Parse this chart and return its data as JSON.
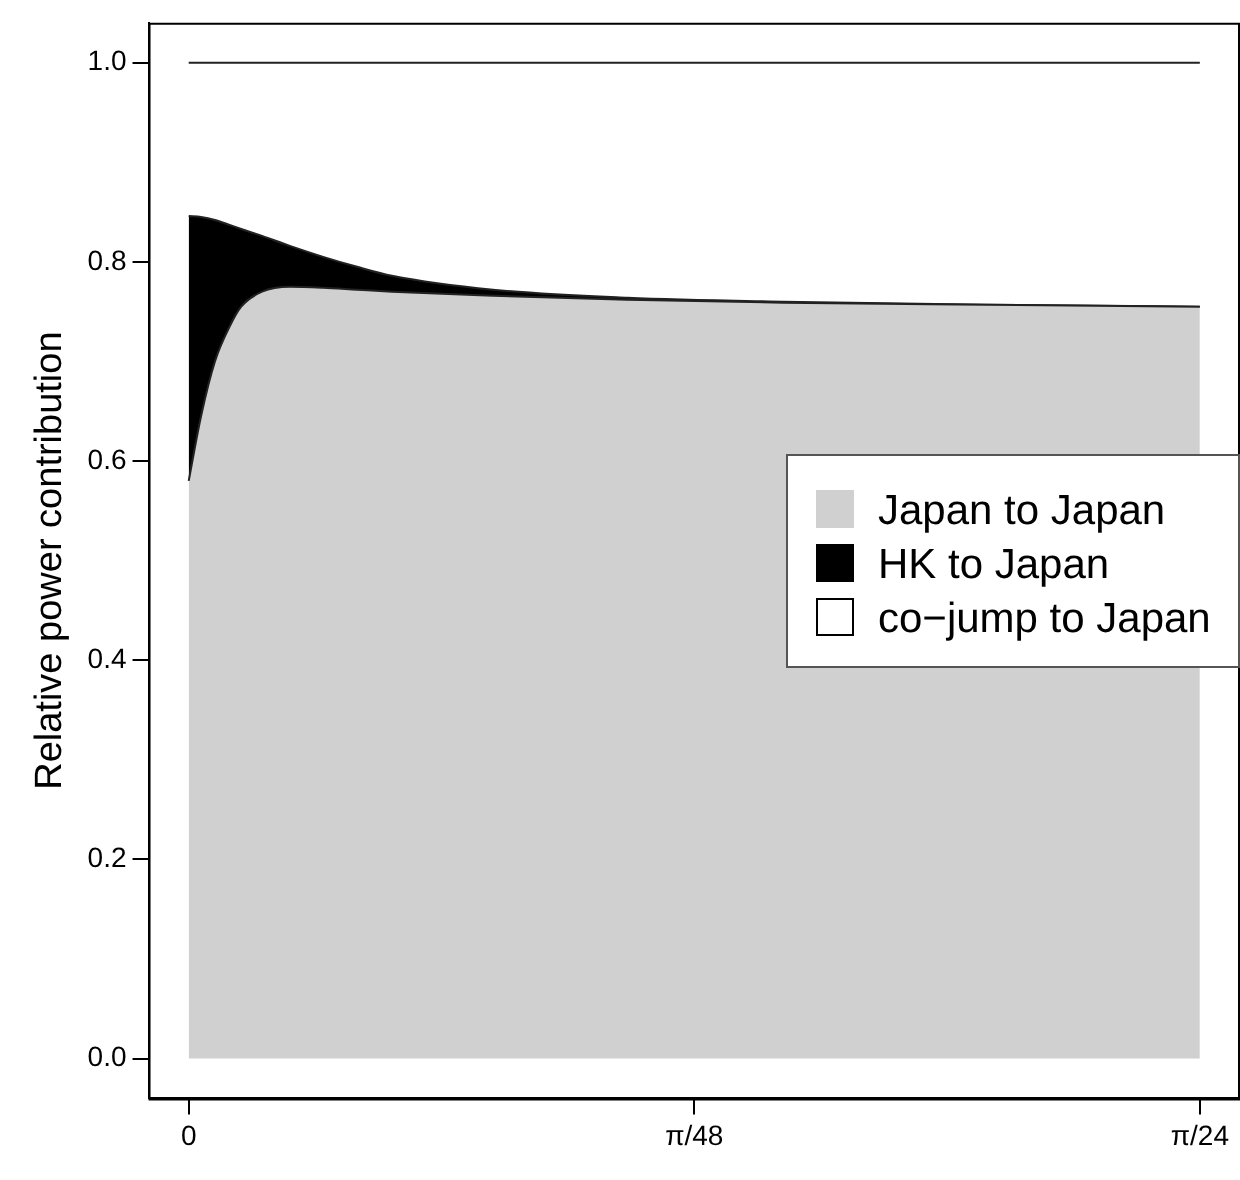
{
  "chart_data": {
    "type": "area",
    "stacked": true,
    "ylabel": "Relative power contribution",
    "x": [
      0,
      0.0016,
      0.0034,
      0.0053,
      0.0068,
      0.0095,
      0.0131,
      0.0174,
      0.0218,
      0.0263,
      0.0394,
      0.0568,
      0.077,
      0.1033,
      0.1309
    ],
    "series": [
      {
        "name": "Japan to Japan",
        "color": "#d0d0d0",
        "values": [
          0.58,
          0.645,
          0.7,
          0.735,
          0.755,
          0.77,
          0.775,
          0.774,
          0.772,
          0.77,
          0.766,
          0.762,
          0.759,
          0.757,
          0.755
        ]
      },
      {
        "name": "HK to Japan",
        "color": "#000000",
        "values": [
          0.266,
          0.2,
          0.142,
          0.102,
          0.078,
          0.056,
          0.041,
          0.031,
          0.023,
          0.016,
          0.006,
          0.002,
          0.001,
          0,
          0
        ]
      },
      {
        "name": "co−jump to Japan",
        "color": "#ffffff",
        "values": [
          0.154,
          0.155,
          0.158,
          0.163,
          0.167,
          0.174,
          0.184,
          0.195,
          0.205,
          0.214,
          0.228,
          0.236,
          0.24,
          0.243,
          0.245
        ]
      }
    ],
    "xlim": [
      -0.0052,
      0.1361
    ],
    "ylim": [
      -0.04,
      1.04
    ],
    "xticks": [
      0,
      {
        "value": 0.06545,
        "label": "π/48"
      },
      {
        "value": 0.1309,
        "label": "π/24"
      }
    ],
    "yticks": [
      {
        "value": 0,
        "label": "0.0"
      },
      {
        "value": 0.2,
        "label": "0.2"
      },
      {
        "value": 0.4,
        "label": "0.4"
      },
      {
        "value": 0.6,
        "label": "0.6"
      },
      {
        "value": 0.8,
        "label": "0.8"
      },
      {
        "value": 1,
        "label": "1.0"
      }
    ],
    "legend": "right",
    "grid": false
  }
}
